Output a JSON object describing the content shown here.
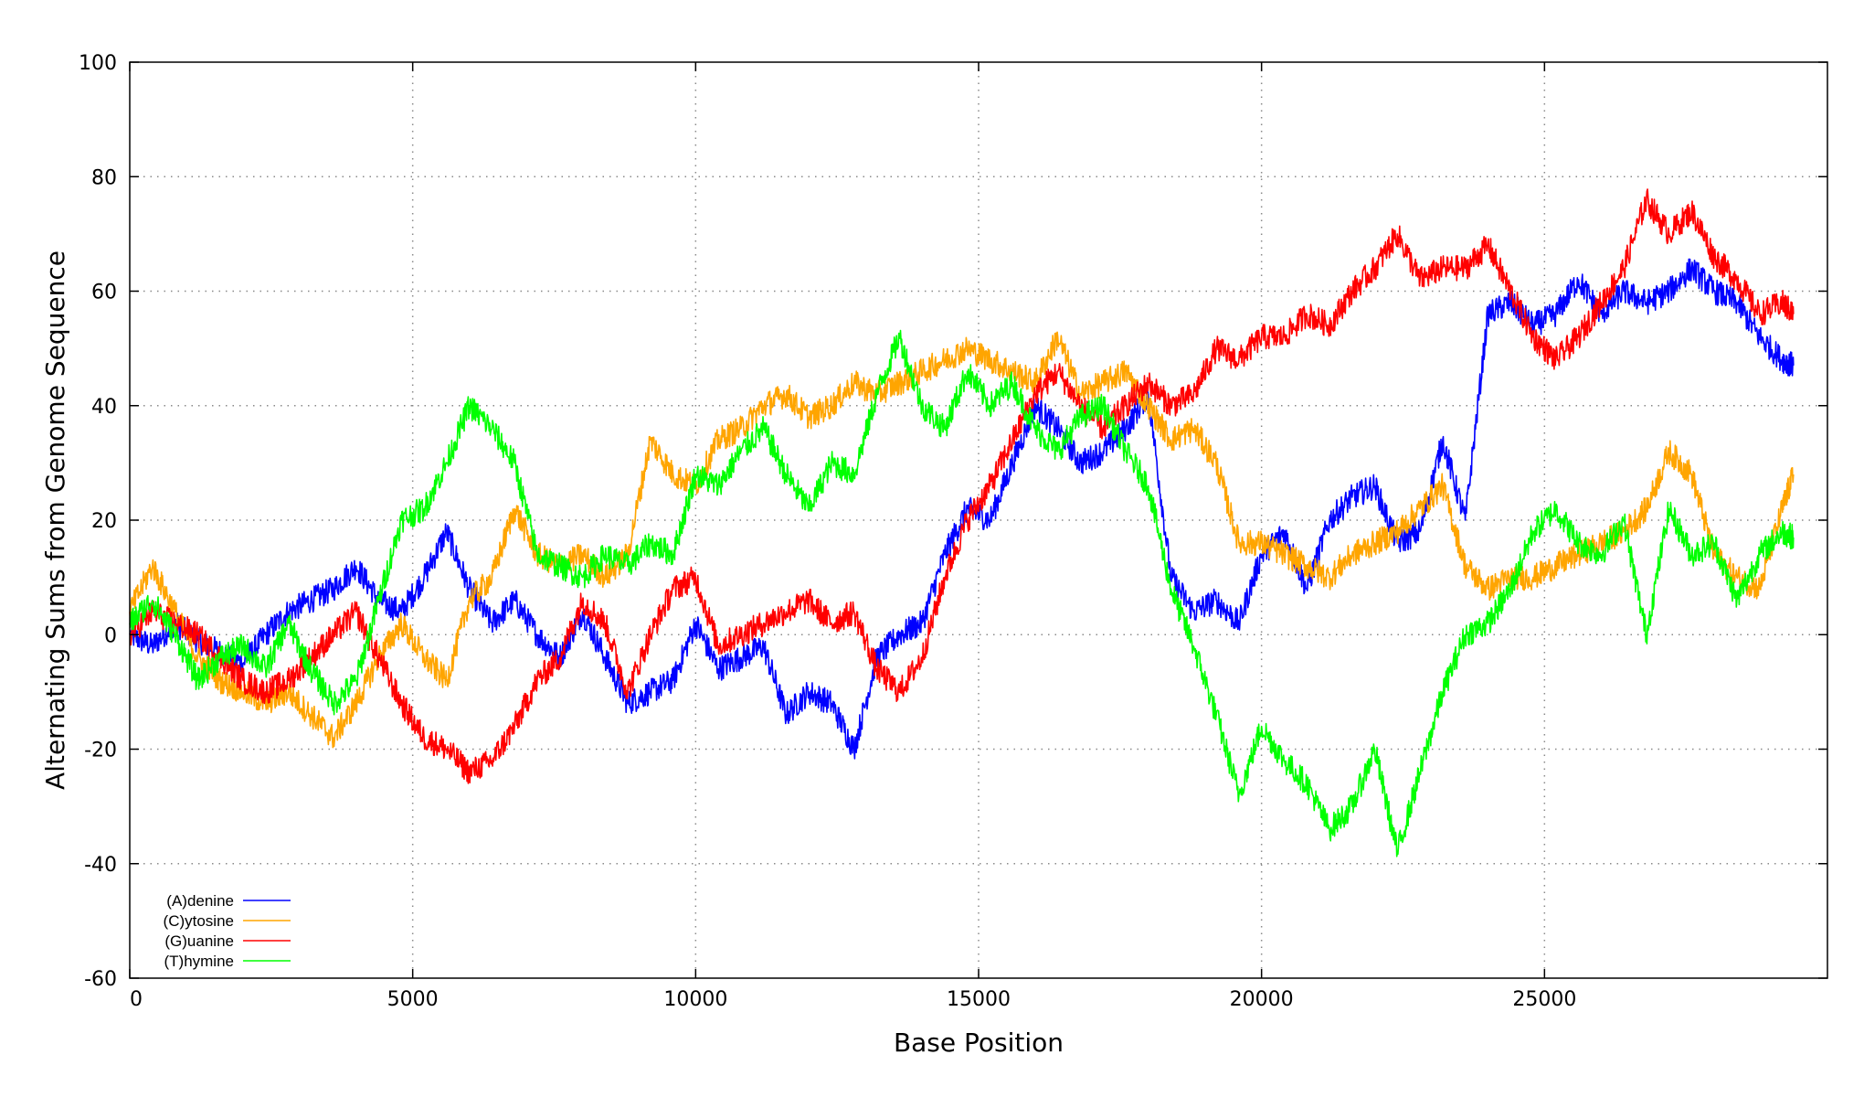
{
  "chart_data": {
    "type": "line",
    "title": "",
    "xlabel": "Base Position",
    "ylabel": "Alternating Sums from Genome Sequence",
    "xlim": [
      0,
      30000
    ],
    "ylim": [
      -60,
      100
    ],
    "x_ticks": [
      0,
      5000,
      10000,
      15000,
      20000,
      25000
    ],
    "y_ticks": [
      -60,
      -40,
      -20,
      0,
      20,
      40,
      60,
      80,
      100
    ],
    "grid": true,
    "legend_position": "bottom-left",
    "series": [
      {
        "name": "(A)denine",
        "color": "#0000ff",
        "x": [
          0,
          400,
          800,
          1200,
          1600,
          2000,
          2400,
          2800,
          3200,
          3600,
          4000,
          4400,
          4800,
          5200,
          5600,
          6000,
          6400,
          6800,
          7200,
          7600,
          8000,
          8400,
          8800,
          9200,
          9600,
          10000,
          10400,
          10800,
          11200,
          11600,
          12000,
          12400,
          12800,
          13200,
          13600,
          14000,
          14400,
          14800,
          15200,
          15600,
          16000,
          16400,
          16800,
          17200,
          17600,
          18000,
          18400,
          18800,
          19200,
          19600,
          20000,
          20400,
          20800,
          21200,
          21600,
          22000,
          22400,
          22800,
          23200,
          23600,
          24000,
          24400,
          24800,
          25200,
          25600,
          26000,
          26400,
          26800,
          27200,
          27600,
          28000,
          28400,
          28800,
          29200,
          29400
        ],
        "y": [
          0,
          -2,
          2,
          -1,
          -3,
          -5,
          0,
          4,
          6,
          8,
          12,
          6,
          4,
          10,
          18,
          8,
          2,
          6,
          0,
          -4,
          4,
          -4,
          -12,
          -10,
          -8,
          2,
          -6,
          -4,
          -2,
          -14,
          -10,
          -12,
          -20,
          -4,
          0,
          2,
          14,
          22,
          20,
          30,
          40,
          36,
          30,
          32,
          36,
          42,
          10,
          4,
          6,
          2,
          14,
          18,
          8,
          20,
          24,
          26,
          16,
          18,
          34,
          20,
          56,
          58,
          54,
          56,
          62,
          56,
          60,
          58,
          60,
          64,
          60,
          58,
          52,
          48,
          47
        ]
      },
      {
        "name": "(C)ytosine",
        "color": "#ffa500",
        "x": [
          0,
          400,
          800,
          1200,
          1600,
          2000,
          2400,
          2800,
          3200,
          3600,
          4000,
          4400,
          4800,
          5200,
          5600,
          6000,
          6400,
          6800,
          7200,
          7600,
          8000,
          8400,
          8800,
          9200,
          9600,
          10000,
          10400,
          10800,
          11200,
          11600,
          12000,
          12400,
          12800,
          13200,
          13600,
          14000,
          14400,
          14800,
          15200,
          15600,
          16000,
          16400,
          16800,
          17200,
          17600,
          18000,
          18400,
          18800,
          19200,
          19600,
          20000,
          20400,
          20800,
          21200,
          21600,
          22000,
          22400,
          22800,
          23200,
          23600,
          24000,
          24400,
          24800,
          25200,
          25600,
          26000,
          26400,
          26800,
          27200,
          27600,
          28000,
          28400,
          28800,
          29200,
          29400
        ],
        "y": [
          4,
          12,
          4,
          -4,
          -8,
          -10,
          -12,
          -10,
          -14,
          -18,
          -12,
          -4,
          2,
          -4,
          -8,
          6,
          10,
          22,
          14,
          12,
          14,
          10,
          14,
          34,
          28,
          26,
          34,
          36,
          40,
          42,
          38,
          40,
          44,
          42,
          44,
          46,
          48,
          50,
          48,
          46,
          44,
          52,
          42,
          44,
          46,
          40,
          34,
          36,
          30,
          16,
          16,
          14,
          12,
          10,
          14,
          16,
          18,
          22,
          26,
          12,
          8,
          10,
          10,
          12,
          14,
          16,
          18,
          22,
          32,
          28,
          14,
          10,
          8,
          22,
          28
        ]
      },
      {
        "name": "(G)uanine",
        "color": "#ff0000",
        "x": [
          0,
          400,
          800,
          1200,
          1600,
          2000,
          2400,
          2800,
          3200,
          3600,
          4000,
          4400,
          4800,
          5200,
          5600,
          6000,
          6400,
          6800,
          7200,
          7600,
          8000,
          8400,
          8800,
          9200,
          9600,
          10000,
          10400,
          10800,
          11200,
          11600,
          12000,
          12400,
          12800,
          13200,
          13600,
          14000,
          14400,
          14800,
          15200,
          15600,
          16000,
          16400,
          16800,
          17200,
          17600,
          18000,
          18400,
          18800,
          19200,
          19600,
          20000,
          20400,
          20800,
          21200,
          21600,
          22000,
          22400,
          22800,
          23200,
          23600,
          24000,
          24400,
          24800,
          25200,
          25600,
          26000,
          26400,
          26800,
          27200,
          27600,
          28000,
          28400,
          28800,
          29200,
          29400
        ],
        "y": [
          0,
          4,
          2,
          0,
          -4,
          -8,
          -10,
          -8,
          -4,
          0,
          4,
          -4,
          -12,
          -18,
          -20,
          -24,
          -22,
          -16,
          -8,
          -4,
          6,
          2,
          -10,
          0,
          8,
          10,
          -2,
          0,
          2,
          4,
          6,
          2,
          4,
          -6,
          -10,
          -4,
          10,
          20,
          26,
          34,
          42,
          46,
          40,
          36,
          40,
          44,
          40,
          42,
          50,
          48,
          52,
          52,
          56,
          54,
          60,
          64,
          70,
          62,
          64,
          64,
          68,
          60,
          52,
          48,
          52,
          58,
          64,
          76,
          70,
          74,
          66,
          62,
          56,
          58,
          56
        ]
      },
      {
        "name": "(T)hymine",
        "color": "#00ff00",
        "x": [
          0,
          400,
          800,
          1200,
          1600,
          2000,
          2400,
          2800,
          3200,
          3600,
          4000,
          4400,
          4800,
          5200,
          5600,
          6000,
          6400,
          6800,
          7200,
          7600,
          8000,
          8400,
          8800,
          9200,
          9600,
          10000,
          10400,
          10800,
          11200,
          11600,
          12000,
          12400,
          12800,
          13200,
          13600,
          14000,
          14400,
          14800,
          15200,
          15600,
          16000,
          16400,
          16800,
          17200,
          17600,
          18000,
          18400,
          18800,
          19200,
          19600,
          20000,
          20400,
          20800,
          21200,
          21600,
          22000,
          22400,
          22800,
          23200,
          23600,
          24000,
          24400,
          24800,
          25200,
          25600,
          26000,
          26400,
          26800,
          27200,
          27600,
          28000,
          28400,
          28800,
          29200,
          29400
        ],
        "y": [
          2,
          6,
          0,
          -8,
          -4,
          -2,
          -6,
          2,
          -6,
          -12,
          -8,
          6,
          20,
          22,
          30,
          40,
          36,
          30,
          14,
          12,
          10,
          14,
          12,
          16,
          14,
          28,
          26,
          32,
          36,
          28,
          22,
          30,
          28,
          42,
          52,
          40,
          36,
          46,
          40,
          44,
          36,
          32,
          38,
          40,
          32,
          26,
          8,
          -2,
          -14,
          -28,
          -16,
          -22,
          -26,
          -34,
          -30,
          -20,
          -38,
          -24,
          -10,
          0,
          2,
          8,
          18,
          22,
          16,
          14,
          20,
          0,
          22,
          14,
          16,
          6,
          14,
          18,
          17
        ]
      }
    ]
  }
}
